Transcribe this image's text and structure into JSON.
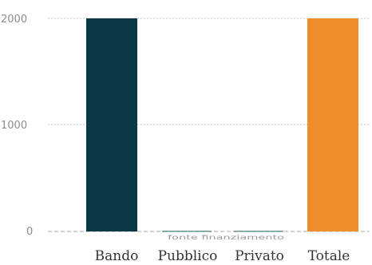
{
  "chart_data": {
    "type": "bar",
    "categories": [
      "Bando",
      "Pubblico",
      "Privato",
      "Totale"
    ],
    "values": [
      2000,
      5,
      5,
      2000
    ],
    "colors": [
      "#0b3845",
      "#1f5f66",
      "#1f5f66",
      "#ef8c2c"
    ],
    "yticks": [
      0,
      1000,
      2000
    ],
    "ylim": [
      0,
      2000
    ],
    "xlabel": "fonte finanziamento",
    "ylabel": "",
    "title": "",
    "grid": true,
    "legend": "none"
  }
}
